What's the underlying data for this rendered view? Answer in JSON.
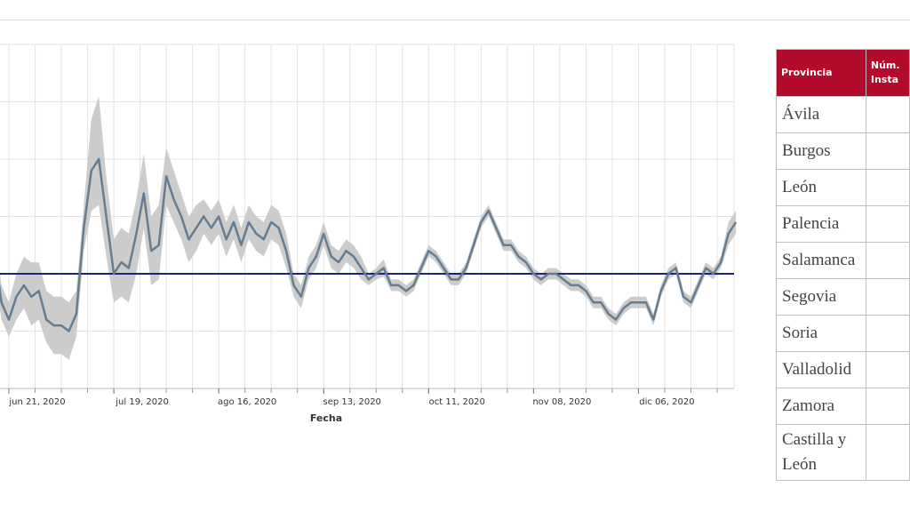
{
  "chart_data": {
    "type": "line",
    "xlabel": "Fecha",
    "ylabel": "",
    "x_start": "2020-06-01",
    "x_end": "2021-01-02",
    "x_ticks": [
      {
        "date": "2020-06-21",
        "label": "jun 21, 2020"
      },
      {
        "date": "2020-07-19",
        "label": "jul 19, 2020"
      },
      {
        "date": "2020-08-16",
        "label": "ago 16, 2020"
      },
      {
        "date": "2020-09-13",
        "label": "sep 13, 2020"
      },
      {
        "date": "2020-10-11",
        "label": "oct 11, 2020"
      },
      {
        "date": "2020-11-08",
        "label": "nov 08, 2020"
      },
      {
        "date": "2020-12-06",
        "label": "dic 06, 2020"
      }
    ],
    "ylim": [
      0,
      6
    ],
    "reference_line": 2,
    "grid": true,
    "legend": "none",
    "series": [
      {
        "x": [
          "2020-06-01",
          "2020-06-03",
          "2020-06-05",
          "2020-06-07",
          "2020-06-09",
          "2020-06-11",
          "2020-06-13",
          "2020-06-15",
          "2020-06-17",
          "2020-06-19",
          "2020-06-21",
          "2020-06-23",
          "2020-06-25",
          "2020-06-27",
          "2020-06-29",
          "2020-07-01",
          "2020-07-03",
          "2020-07-05",
          "2020-07-07",
          "2020-07-09",
          "2020-07-11",
          "2020-07-13",
          "2020-07-15",
          "2020-07-17",
          "2020-07-19",
          "2020-07-21",
          "2020-07-23",
          "2020-07-25",
          "2020-07-27",
          "2020-07-29",
          "2020-07-31",
          "2020-08-02",
          "2020-08-04",
          "2020-08-06",
          "2020-08-08",
          "2020-08-10",
          "2020-08-12",
          "2020-08-14",
          "2020-08-16",
          "2020-08-18",
          "2020-08-20",
          "2020-08-22",
          "2020-08-24",
          "2020-08-26",
          "2020-08-28",
          "2020-08-30",
          "2020-09-01",
          "2020-09-03",
          "2020-09-05",
          "2020-09-07",
          "2020-09-09",
          "2020-09-11",
          "2020-09-13",
          "2020-09-15",
          "2020-09-17",
          "2020-09-19",
          "2020-09-21",
          "2020-09-23",
          "2020-09-25",
          "2020-09-27",
          "2020-09-29",
          "2020-10-01",
          "2020-10-03",
          "2020-10-05",
          "2020-10-07",
          "2020-10-09",
          "2020-10-11",
          "2020-10-13",
          "2020-10-15",
          "2020-10-17",
          "2020-10-19",
          "2020-10-21",
          "2020-10-23",
          "2020-10-25",
          "2020-10-27",
          "2020-10-29",
          "2020-10-31",
          "2020-11-02",
          "2020-11-04",
          "2020-11-06",
          "2020-11-08",
          "2020-11-10",
          "2020-11-12",
          "2020-11-14",
          "2020-11-16",
          "2020-11-18",
          "2020-11-20",
          "2020-11-22",
          "2020-11-24",
          "2020-11-26",
          "2020-11-28",
          "2020-11-30",
          "2020-12-02",
          "2020-12-04",
          "2020-12-06",
          "2020-12-08",
          "2020-12-10",
          "2020-12-12",
          "2020-12-14",
          "2020-12-16",
          "2020-12-18",
          "2020-12-20",
          "2020-12-22",
          "2020-12-24",
          "2020-12-26",
          "2020-12-28",
          "2020-12-30",
          "2021-01-01"
        ],
        "y": [
          1.2,
          1.3,
          1.5,
          2.1,
          3.0,
          4.2,
          3.6,
          2.8,
          2.5,
          1.5,
          1.2,
          1.6,
          1.8,
          1.6,
          1.7,
          1.2,
          1.1,
          1.1,
          1.0,
          1.3,
          2.8,
          3.8,
          4.0,
          3.0,
          2.0,
          2.2,
          2.1,
          2.7,
          3.4,
          2.4,
          2.5,
          3.7,
          3.3,
          3.0,
          2.6,
          2.8,
          3.0,
          2.8,
          3.0,
          2.6,
          2.9,
          2.5,
          2.9,
          2.7,
          2.6,
          2.9,
          2.8,
          2.4,
          1.8,
          1.6,
          2.1,
          2.3,
          2.7,
          2.3,
          2.2,
          2.4,
          2.3,
          2.1,
          1.9,
          2.0,
          2.1,
          1.8,
          1.8,
          1.7,
          1.8,
          2.1,
          2.4,
          2.3,
          2.1,
          1.9,
          1.9,
          2.1,
          2.5,
          2.9,
          3.1,
          2.8,
          2.5,
          2.5,
          2.3,
          2.2,
          2.0,
          1.9,
          2.0,
          2.0,
          1.9,
          1.8,
          1.8,
          1.7,
          1.5,
          1.5,
          1.3,
          1.2,
          1.4,
          1.5,
          1.5,
          1.5,
          1.2,
          1.7,
          2.0,
          2.1,
          1.6,
          1.5,
          1.8,
          2.1,
          2.0,
          2.2,
          2.7,
          2.9
        ],
        "lower": [
          1.0,
          1.1,
          1.3,
          1.9,
          2.7,
          3.8,
          3.2,
          2.4,
          2.1,
          1.2,
          0.9,
          1.2,
          1.4,
          1.1,
          1.2,
          0.8,
          0.6,
          0.6,
          0.5,
          0.9,
          2.4,
          3.1,
          3.2,
          2.3,
          1.5,
          1.6,
          1.5,
          2.0,
          2.8,
          1.8,
          1.9,
          3.2,
          2.9,
          2.6,
          2.2,
          2.4,
          2.7,
          2.5,
          2.7,
          2.3,
          2.6,
          2.2,
          2.6,
          2.4,
          2.3,
          2.6,
          2.5,
          2.1,
          1.6,
          1.4,
          1.9,
          2.1,
          2.5,
          2.1,
          2.0,
          2.2,
          2.1,
          1.9,
          1.8,
          1.9,
          1.95,
          1.7,
          1.7,
          1.6,
          1.7,
          2.0,
          2.3,
          2.2,
          2.0,
          1.8,
          1.8,
          2.0,
          2.4,
          2.8,
          3.0,
          2.7,
          2.4,
          2.4,
          2.2,
          2.1,
          1.9,
          1.8,
          1.9,
          1.9,
          1.8,
          1.7,
          1.7,
          1.6,
          1.4,
          1.4,
          1.2,
          1.1,
          1.3,
          1.4,
          1.4,
          1.4,
          1.1,
          1.6,
          1.9,
          2.0,
          1.5,
          1.4,
          1.7,
          2.0,
          1.9,
          2.1,
          2.5,
          2.7
        ],
        "upper": [
          1.4,
          1.5,
          1.7,
          2.3,
          3.3,
          4.6,
          4.0,
          3.2,
          2.9,
          1.8,
          1.5,
          2.0,
          2.3,
          2.2,
          2.2,
          1.7,
          1.6,
          1.6,
          1.5,
          1.7,
          3.2,
          4.7,
          5.1,
          3.7,
          2.6,
          2.8,
          2.7,
          3.3,
          4.1,
          3.0,
          3.2,
          4.2,
          3.8,
          3.4,
          3.0,
          3.2,
          3.3,
          3.1,
          3.3,
          2.9,
          3.2,
          2.8,
          3.2,
          3.0,
          2.9,
          3.2,
          3.1,
          2.7,
          2.0,
          1.8,
          2.3,
          2.5,
          2.9,
          2.5,
          2.4,
          2.6,
          2.5,
          2.3,
          2.0,
          2.1,
          2.25,
          1.9,
          1.9,
          1.8,
          1.9,
          2.2,
          2.5,
          2.4,
          2.2,
          2.0,
          2.0,
          2.2,
          2.6,
          3.0,
          3.2,
          2.9,
          2.6,
          2.6,
          2.4,
          2.3,
          2.1,
          2.0,
          2.1,
          2.1,
          2.0,
          1.9,
          1.9,
          1.8,
          1.6,
          1.6,
          1.4,
          1.3,
          1.5,
          1.6,
          1.6,
          1.6,
          1.3,
          1.8,
          2.1,
          2.2,
          1.7,
          1.6,
          1.9,
          2.2,
          2.1,
          2.3,
          2.9,
          3.1
        ]
      }
    ],
    "colors": {
      "line": "#667d91",
      "band": "#cccccc",
      "reference": "#1a237e",
      "grid": "#e3e3e3"
    }
  },
  "table": {
    "headers": [
      "Provincia",
      "Núm. Insta"
    ],
    "rows": [
      {
        "provincia": "Ávila"
      },
      {
        "provincia": "Burgos"
      },
      {
        "provincia": "León"
      },
      {
        "provincia": "Palencia"
      },
      {
        "provincia": "Salamanca"
      },
      {
        "provincia": "Segovia"
      },
      {
        "provincia": "Soria"
      },
      {
        "provincia": "Valladolid"
      },
      {
        "provincia": "Zamora"
      },
      {
        "provincia": "Castilla y León"
      }
    ],
    "header_color": "#b30b2c"
  }
}
